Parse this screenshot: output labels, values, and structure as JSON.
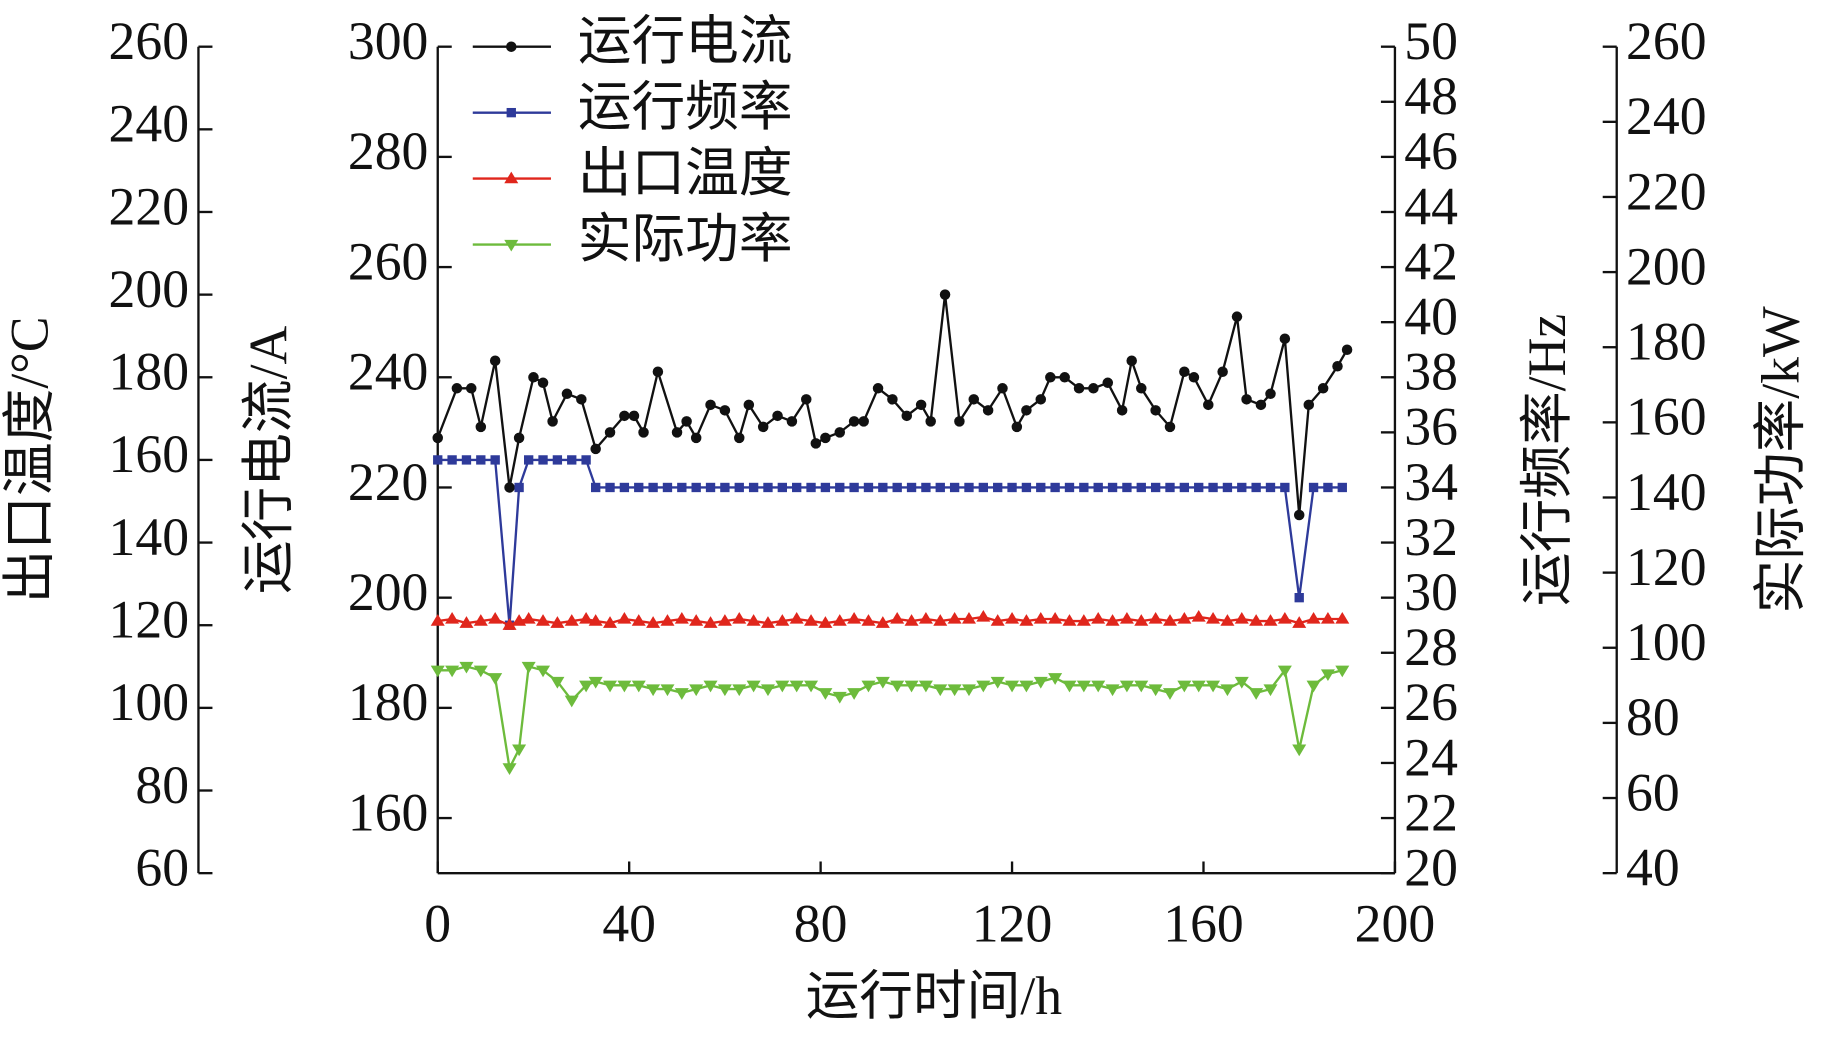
{
  "chart_data": {
    "type": "line",
    "xlabel": "运行时间/h",
    "xlim": [
      0,
      200
    ],
    "xticks": [
      0,
      40,
      80,
      120,
      160,
      200
    ],
    "axes": {
      "current": {
        "label": "运行电流/A",
        "lim": [
          150,
          300
        ],
        "ticks": [
          160,
          180,
          200,
          220,
          240,
          260,
          280,
          300
        ]
      },
      "temp": {
        "label": "出口温度/°C",
        "lim": [
          60,
          260
        ],
        "ticks": [
          60,
          80,
          100,
          120,
          140,
          160,
          180,
          200,
          220,
          240,
          260
        ]
      },
      "freq": {
        "label": "运行频率/Hz",
        "lim": [
          20,
          50
        ],
        "ticks": [
          20,
          22,
          24,
          26,
          28,
          30,
          32,
          34,
          36,
          38,
          40,
          42,
          44,
          46,
          48,
          50
        ]
      },
      "power": {
        "label": "实际功率/kW",
        "lim": [
          40,
          260
        ],
        "ticks": [
          40,
          60,
          80,
          100,
          120,
          140,
          160,
          180,
          200,
          220,
          240,
          260
        ]
      }
    },
    "legend": "upper left",
    "series": [
      {
        "name": "运行电流",
        "color": "#111111",
        "marker": "circle",
        "axis": "current",
        "x": [
          0,
          4,
          7,
          9,
          12,
          15,
          17,
          20,
          22,
          24,
          27,
          30,
          33,
          36,
          39,
          41,
          43,
          46,
          50,
          52,
          54,
          57,
          60,
          63,
          65,
          68,
          71,
          74,
          77,
          79,
          81,
          84,
          87,
          89,
          92,
          95,
          98,
          101,
          103,
          106,
          109,
          112,
          115,
          118,
          121,
          123,
          126,
          128,
          131,
          134,
          137,
          140,
          143,
          145,
          147,
          150,
          153,
          156,
          158,
          161,
          164,
          167,
          169,
          172,
          174,
          177,
          180,
          182,
          185,
          188,
          190
        ],
        "values": [
          229,
          238,
          238,
          231,
          243,
          220,
          229,
          240,
          239,
          232,
          237,
          236,
          227,
          230,
          233,
          233,
          230,
          241,
          230,
          232,
          229,
          235,
          234,
          229,
          235,
          231,
          233,
          232,
          236,
          228,
          229,
          230,
          232,
          232,
          238,
          236,
          233,
          235,
          232,
          255,
          232,
          236,
          234,
          238,
          231,
          234,
          236,
          240,
          240,
          238,
          238,
          239,
          234,
          243,
          238,
          234,
          231,
          241,
          240,
          235,
          241,
          251,
          236,
          235,
          237,
          247,
          215,
          235,
          238,
          242,
          245
        ]
      },
      {
        "name": "运行频率",
        "color": "#2e3a9a",
        "marker": "square",
        "axis": "freq",
        "x": [
          0,
          3,
          6,
          9,
          12,
          15,
          17,
          19,
          22,
          25,
          28,
          31,
          33,
          36,
          39,
          42,
          45,
          48,
          51,
          54,
          57,
          60,
          63,
          66,
          69,
          72,
          75,
          78,
          81,
          84,
          87,
          90,
          93,
          96,
          99,
          102,
          105,
          108,
          111,
          114,
          117,
          120,
          123,
          126,
          129,
          132,
          135,
          138,
          141,
          144,
          147,
          150,
          153,
          156,
          159,
          162,
          165,
          168,
          171,
          174,
          177,
          180,
          183,
          186,
          189
        ],
        "values": [
          35,
          35,
          35,
          35,
          35,
          29,
          34,
          35,
          35,
          35,
          35,
          35,
          34,
          34,
          34,
          34,
          34,
          34,
          34,
          34,
          34,
          34,
          34,
          34,
          34,
          34,
          34,
          34,
          34,
          34,
          34,
          34,
          34,
          34,
          34,
          34,
          34,
          34,
          34,
          34,
          34,
          34,
          34,
          34,
          34,
          34,
          34,
          34,
          34,
          34,
          34,
          34,
          34,
          34,
          34,
          34,
          34,
          34,
          34,
          34,
          34,
          30,
          34,
          34,
          34
        ]
      },
      {
        "name": "出口温度",
        "color": "#e0261c",
        "marker": "triangle-up",
        "axis": "temp",
        "x": [
          0,
          3,
          6,
          9,
          12,
          15,
          17,
          19,
          22,
          25,
          28,
          31,
          33,
          36,
          39,
          42,
          45,
          48,
          51,
          54,
          57,
          60,
          63,
          66,
          69,
          72,
          75,
          78,
          81,
          84,
          87,
          90,
          93,
          96,
          99,
          102,
          105,
          108,
          111,
          114,
          117,
          120,
          123,
          126,
          129,
          132,
          135,
          138,
          141,
          144,
          147,
          150,
          153,
          156,
          159,
          162,
          165,
          168,
          171,
          174,
          177,
          180,
          183,
          186,
          189
        ],
        "values": [
          121,
          121.5,
          120.5,
          121,
          121.5,
          120,
          121,
          121.5,
          121,
          120.5,
          121,
          121.5,
          121,
          120.5,
          121.5,
          121,
          120.5,
          121,
          121.5,
          121,
          120.5,
          121,
          121.5,
          121,
          120.5,
          121,
          121.5,
          121,
          120.5,
          121,
          121.5,
          121,
          120.5,
          121.5,
          121,
          121.5,
          121,
          121.5,
          121.5,
          122,
          121,
          121.5,
          121,
          121.5,
          121.5,
          121,
          121,
          121.5,
          121,
          121.5,
          121,
          121.5,
          121,
          121.5,
          122,
          121.5,
          121,
          121.5,
          121,
          121,
          121.5,
          120.5,
          121.5,
          121.5,
          121.5
        ]
      },
      {
        "name": "实际功率",
        "color": "#6dbb3c",
        "marker": "triangle-down",
        "axis": "power",
        "x": [
          0,
          3,
          6,
          9,
          12,
          15,
          17,
          19,
          22,
          25,
          28,
          31,
          33,
          36,
          39,
          42,
          45,
          48,
          51,
          54,
          57,
          60,
          63,
          66,
          69,
          72,
          75,
          78,
          81,
          84,
          87,
          90,
          93,
          96,
          99,
          102,
          105,
          108,
          111,
          114,
          117,
          120,
          123,
          126,
          129,
          132,
          135,
          138,
          141,
          144,
          147,
          150,
          153,
          156,
          159,
          162,
          165,
          168,
          171,
          174,
          177,
          180,
          183,
          186,
          189
        ],
        "values": [
          94,
          94,
          95,
          94,
          92,
          68,
          73,
          95,
          94,
          91,
          86,
          90,
          91,
          90,
          90,
          90,
          89,
          89,
          88,
          89,
          90,
          89,
          89,
          90,
          89,
          90,
          90,
          90,
          88,
          87,
          88,
          90,
          91,
          90,
          90,
          90,
          89,
          89,
          89,
          90,
          91,
          90,
          90,
          91,
          92,
          90,
          90,
          90,
          89,
          90,
          90,
          89,
          88,
          90,
          90,
          90,
          89,
          91,
          88,
          89,
          94,
          73,
          90,
          93,
          94
        ]
      }
    ]
  }
}
